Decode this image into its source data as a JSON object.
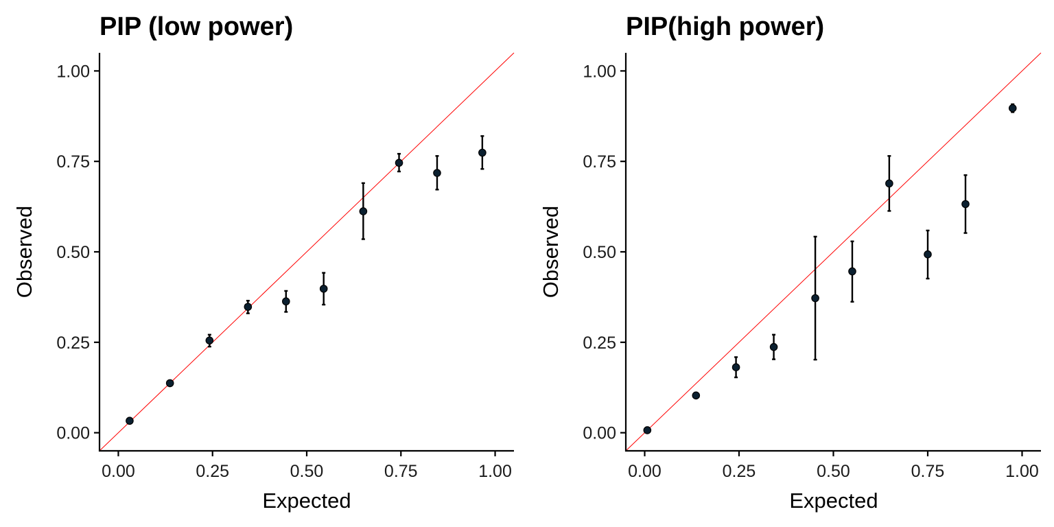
{
  "chart_data": [
    {
      "type": "scatter",
      "title": "PIP (low power)",
      "xlabel": "Expected",
      "ylabel": "Observed",
      "xlim": [
        -0.05,
        1.05
      ],
      "ylim": [
        -0.05,
        1.05
      ],
      "xticks": [
        "0.00",
        "0.25",
        "0.50",
        "0.75",
        "1.00"
      ],
      "yticks": [
        "0.00",
        "0.25",
        "0.50",
        "0.75",
        "1.00"
      ],
      "reference_line": {
        "slope": 1,
        "intercept": 0,
        "color": "#ff0000"
      },
      "grid": false,
      "points": [
        {
          "x": 0.03,
          "y": 0.033,
          "ylow": 0.033,
          "yhigh": 0.033
        },
        {
          "x": 0.137,
          "y": 0.137,
          "ylow": 0.137,
          "yhigh": 0.137
        },
        {
          "x": 0.242,
          "y": 0.255,
          "ylow": 0.238,
          "yhigh": 0.271
        },
        {
          "x": 0.344,
          "y": 0.348,
          "ylow": 0.33,
          "yhigh": 0.365
        },
        {
          "x": 0.445,
          "y": 0.363,
          "ylow": 0.334,
          "yhigh": 0.392
        },
        {
          "x": 0.545,
          "y": 0.398,
          "ylow": 0.354,
          "yhigh": 0.442
        },
        {
          "x": 0.65,
          "y": 0.612,
          "ylow": 0.535,
          "yhigh": 0.69
        },
        {
          "x": 0.745,
          "y": 0.746,
          "ylow": 0.722,
          "yhigh": 0.771
        },
        {
          "x": 0.846,
          "y": 0.718,
          "ylow": 0.672,
          "yhigh": 0.765
        },
        {
          "x": 0.966,
          "y": 0.774,
          "ylow": 0.729,
          "yhigh": 0.82
        }
      ]
    },
    {
      "type": "scatter",
      "title": "PIP(high power)",
      "xlabel": "Expected",
      "ylabel": "Observed",
      "xlim": [
        -0.05,
        1.05
      ],
      "ylim": [
        -0.05,
        1.05
      ],
      "xticks": [
        "0.00",
        "0.25",
        "0.50",
        "0.75",
        "1.00"
      ],
      "yticks": [
        "0.00",
        "0.25",
        "0.50",
        "0.75",
        "1.00"
      ],
      "reference_line": {
        "slope": 1,
        "intercept": 0,
        "color": "#ff0000"
      },
      "grid": false,
      "points": [
        {
          "x": 0.007,
          "y": 0.007,
          "ylow": 0.007,
          "yhigh": 0.007
        },
        {
          "x": 0.136,
          "y": 0.103,
          "ylow": 0.097,
          "yhigh": 0.109
        },
        {
          "x": 0.242,
          "y": 0.181,
          "ylow": 0.153,
          "yhigh": 0.209
        },
        {
          "x": 0.342,
          "y": 0.237,
          "ylow": 0.203,
          "yhigh": 0.271
        },
        {
          "x": 0.452,
          "y": 0.372,
          "ylow": 0.202,
          "yhigh": 0.542
        },
        {
          "x": 0.55,
          "y": 0.446,
          "ylow": 0.362,
          "yhigh": 0.529
        },
        {
          "x": 0.648,
          "y": 0.689,
          "ylow": 0.613,
          "yhigh": 0.765
        },
        {
          "x": 0.75,
          "y": 0.493,
          "ylow": 0.426,
          "yhigh": 0.559
        },
        {
          "x": 0.85,
          "y": 0.632,
          "ylow": 0.552,
          "yhigh": 0.712
        },
        {
          "x": 0.975,
          "y": 0.897,
          "ylow": 0.886,
          "yhigh": 0.908
        }
      ]
    }
  ]
}
